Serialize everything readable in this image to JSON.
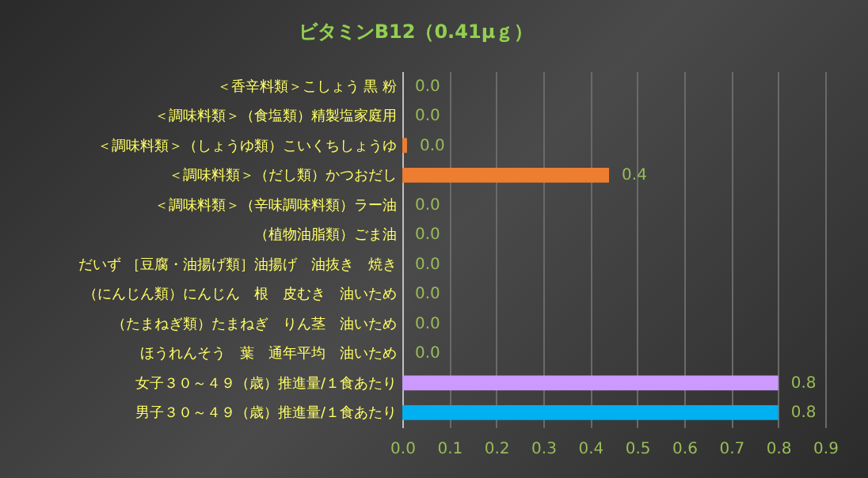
{
  "chart_data": {
    "type": "bar",
    "orientation": "horizontal",
    "title": "ビタミンB12（0.41μｇ）",
    "categories": [
      "＜香辛料類＞こしょう 黒 粉",
      "＜調味料類＞（食塩類）精製塩家庭用",
      "＜調味料類＞（しょうゆ類）こいくちしょうゆ",
      "＜調味料類＞（だし類）かつおだし",
      "＜調味料類＞（辛味調味料類）ラー油",
      "（植物油脂類）ごま油",
      "だいず ［豆腐・油揚げ類］油揚げ　油抜き　焼き",
      "（にんじん類）にんじん　根　皮むき　油いため",
      "（たまねぎ類）たまねぎ　りん茎　油いため",
      "ほうれんそう　葉　通年平均　油いため",
      "女子３０～４９（歳）推進量/１食あたり",
      "男子３０～４９（歳）推進量/１食あたり"
    ],
    "values": [
      0,
      0,
      0.01,
      0.44,
      0,
      0,
      0,
      0,
      0,
      0,
      0.8,
      0.8
    ],
    "value_labels": [
      "0.0",
      "0.0",
      "0.0",
      "0.4",
      "0.0",
      "0.0",
      "0.0",
      "0.0",
      "0.0",
      "0.0",
      "0.8",
      "0.8"
    ],
    "colors": [
      "#ed7d31",
      "#ed7d31",
      "#ed7d31",
      "#ed7d31",
      "#ed7d31",
      "#ed7d31",
      "#ed7d31",
      "#ed7d31",
      "#ed7d31",
      "#ed7d31",
      "#cc99ff",
      "#00b0f0"
    ],
    "xlim": [
      0,
      0.9
    ],
    "xticks": [
      {
        "value": 0,
        "label": "0.0"
      },
      0.1,
      0.2,
      0.3,
      0.4,
      0.5,
      0.6,
      0.7,
      0.8,
      0.9
    ],
    "grid": "x"
  }
}
